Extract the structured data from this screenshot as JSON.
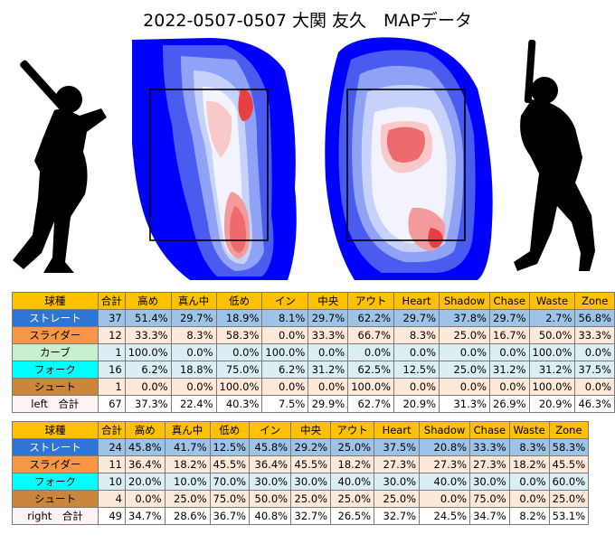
{
  "title": "2022-0507-0507 大関 友久　MAPデータ",
  "chart_data": [
    {
      "type": "heatmap",
      "name": "left",
      "note_type": "pitch location density",
      "colors": [
        "#0000ff",
        "#4a5cf0",
        "#8fa2f5",
        "#c7d2fb",
        "#f3f3fd",
        "#f7c9ca",
        "#f29a9c",
        "#ee6a6c",
        "#ea3f41"
      ]
    },
    {
      "type": "heatmap",
      "name": "right",
      "colors": [
        "#0000ff",
        "#4a5cf0",
        "#8fa2f5",
        "#c7d2fb",
        "#f3f3fd",
        "#f7c9ca",
        "#f29a9c",
        "#ee6a6c",
        "#ea3f41"
      ]
    },
    {
      "type": "table",
      "columns": [
        "球種",
        "合計",
        "高め",
        "真ん中",
        "低め",
        "イン",
        "中央",
        "アウト",
        "Heart",
        "Shadow",
        "Chase",
        "Waste",
        "Zone"
      ],
      "rows": [
        [
          "ストレート",
          "37",
          "51.4%",
          "29.7%",
          "18.9%",
          "8.1%",
          "29.7%",
          "62.2%",
          "29.7%",
          "37.8%",
          "29.7%",
          "2.7%",
          "56.8%"
        ],
        [
          "スライダー",
          "12",
          "33.3%",
          "8.3%",
          "58.3%",
          "0.0%",
          "33.3%",
          "66.7%",
          "8.3%",
          "25.0%",
          "16.7%",
          "50.0%",
          "33.3%"
        ],
        [
          "カーブ",
          "1",
          "100.0%",
          "0.0%",
          "0.0%",
          "100.0%",
          "0.0%",
          "0.0%",
          "0.0%",
          "0.0%",
          "0.0%",
          "100.0%",
          "0.0%"
        ],
        [
          "フォーク",
          "16",
          "6.2%",
          "18.8%",
          "75.0%",
          "6.2%",
          "31.2%",
          "62.5%",
          "12.5%",
          "25.0%",
          "31.2%",
          "31.2%",
          "37.5%"
        ],
        [
          "シュート",
          "1",
          "0.0%",
          "0.0%",
          "100.0%",
          "0.0%",
          "0.0%",
          "100.0%",
          "0.0%",
          "0.0%",
          "0.0%",
          "100.0%",
          "0.0%"
        ],
        [
          "left　合計",
          "67",
          "37.3%",
          "22.4%",
          "40.3%",
          "7.5%",
          "29.9%",
          "62.7%",
          "20.9%",
          "31.3%",
          "26.9%",
          "20.9%",
          "46.3%"
        ]
      ]
    },
    {
      "type": "table",
      "columns": [
        "球種",
        "合計",
        "高め",
        "真ん中",
        "低め",
        "イン",
        "中央",
        "アウト",
        "Heart",
        "Shadow",
        "Chase",
        "Waste",
        "Zone"
      ],
      "rows": [
        [
          "ストレート",
          "24",
          "45.8%",
          "41.7%",
          "12.5%",
          "45.8%",
          "29.2%",
          "25.0%",
          "37.5%",
          "20.8%",
          "33.3%",
          "8.3%",
          "58.3%"
        ],
        [
          "スライダー",
          "11",
          "36.4%",
          "18.2%",
          "45.5%",
          "36.4%",
          "45.5%",
          "18.2%",
          "27.3%",
          "27.3%",
          "27.3%",
          "18.2%",
          "45.5%"
        ],
        [
          "フォーク",
          "10",
          "20.0%",
          "10.0%",
          "70.0%",
          "30.0%",
          "30.0%",
          "40.0%",
          "30.0%",
          "40.0%",
          "30.0%",
          "0.0%",
          "60.0%"
        ],
        [
          "シュート",
          "4",
          "0.0%",
          "25.0%",
          "75.0%",
          "50.0%",
          "25.0%",
          "25.0%",
          "25.0%",
          "0.0%",
          "75.0%",
          "0.0%",
          "25.0%"
        ],
        [
          "right　合計",
          "49",
          "34.7%",
          "28.6%",
          "36.7%",
          "40.8%",
          "32.7%",
          "26.5%",
          "32.7%",
          "24.5%",
          "34.7%",
          "8.2%",
          "53.1%"
        ]
      ]
    }
  ]
}
